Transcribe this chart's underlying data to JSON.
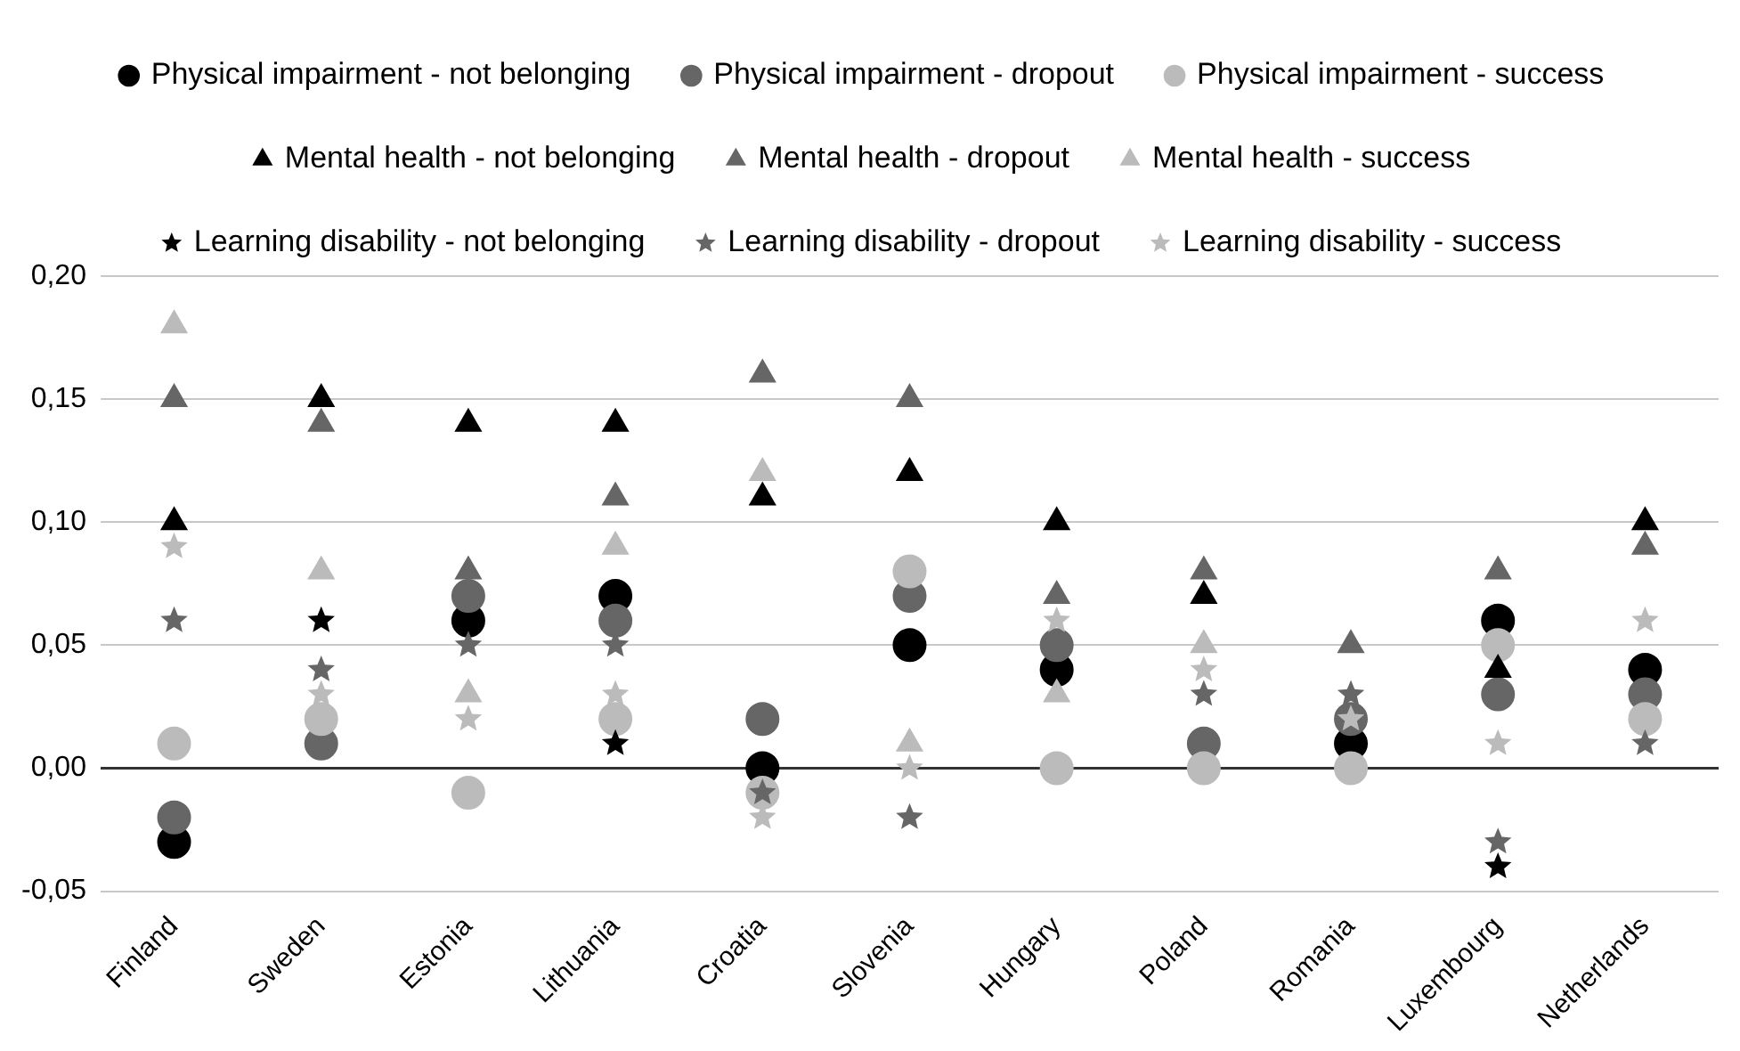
{
  "chart_data": {
    "type": "scatter",
    "categories": [
      "Finland",
      "Sweden",
      "Estonia",
      "Lithuania",
      "Croatia",
      "Slovenia",
      "Hungary",
      "Poland",
      "Romania",
      "Luxembourg",
      "Netherlands"
    ],
    "series": [
      {
        "name": "Physical impairment - not belonging",
        "color": "#000000",
        "marker": "circle",
        "values": [
          -0.03,
          null,
          0.06,
          0.07,
          0.0,
          0.05,
          0.04,
          null,
          0.01,
          0.06,
          0.04
        ]
      },
      {
        "name": "Physical impairment - dropout",
        "color": "#666666",
        "marker": "circle",
        "values": [
          -0.02,
          0.01,
          0.07,
          0.06,
          0.02,
          0.07,
          0.05,
          0.01,
          0.02,
          0.03,
          0.03
        ]
      },
      {
        "name": "Physical impairment - success",
        "color": "#bbbbbb",
        "marker": "circle",
        "values": [
          0.01,
          0.02,
          -0.01,
          0.02,
          -0.01,
          0.08,
          0.0,
          0.0,
          0.0,
          0.05,
          0.02
        ]
      },
      {
        "name": "Mental health - not belonging",
        "color": "#000000",
        "marker": "triangle",
        "values": [
          0.1,
          0.15,
          0.14,
          0.14,
          0.11,
          0.12,
          0.1,
          0.07,
          null,
          0.04,
          0.1
        ]
      },
      {
        "name": "Mental health - dropout",
        "color": "#666666",
        "marker": "triangle",
        "values": [
          0.15,
          0.14,
          0.08,
          0.11,
          0.16,
          0.15,
          0.07,
          0.08,
          0.05,
          0.08,
          0.09
        ]
      },
      {
        "name": "Mental health - success",
        "color": "#bbbbbb",
        "marker": "triangle",
        "values": [
          0.18,
          0.08,
          0.03,
          0.09,
          0.12,
          0.01,
          0.03,
          0.05,
          null,
          null,
          null
        ]
      },
      {
        "name": "Learning disability - not belonging",
        "color": "#000000",
        "marker": "star",
        "values": [
          null,
          0.06,
          null,
          0.01,
          null,
          null,
          null,
          null,
          null,
          -0.04,
          null
        ]
      },
      {
        "name": "Learning disability - dropout",
        "color": "#666666",
        "marker": "star",
        "values": [
          0.06,
          0.04,
          0.05,
          0.05,
          -0.01,
          -0.02,
          null,
          0.03,
          0.03,
          -0.03,
          0.01
        ]
      },
      {
        "name": "Learning disability - success",
        "color": "#bbbbbb",
        "marker": "star",
        "values": [
          0.09,
          0.03,
          0.02,
          0.03,
          -0.02,
          0.0,
          0.06,
          0.04,
          0.02,
          0.01,
          0.06
        ]
      }
    ],
    "ylim": [
      -0.05,
      0.2
    ],
    "yticks": [
      {
        "value": -0.05,
        "label": "-0,05"
      },
      {
        "value": 0,
        "label": "0,00"
      },
      {
        "value": 0.05,
        "label": "0,05"
      },
      {
        "value": 0.1,
        "label": "0,10"
      },
      {
        "value": 0.15,
        "label": "0,15"
      },
      {
        "value": 0.2,
        "label": "0,20"
      }
    ],
    "grid": "y",
    "legend": "top"
  }
}
